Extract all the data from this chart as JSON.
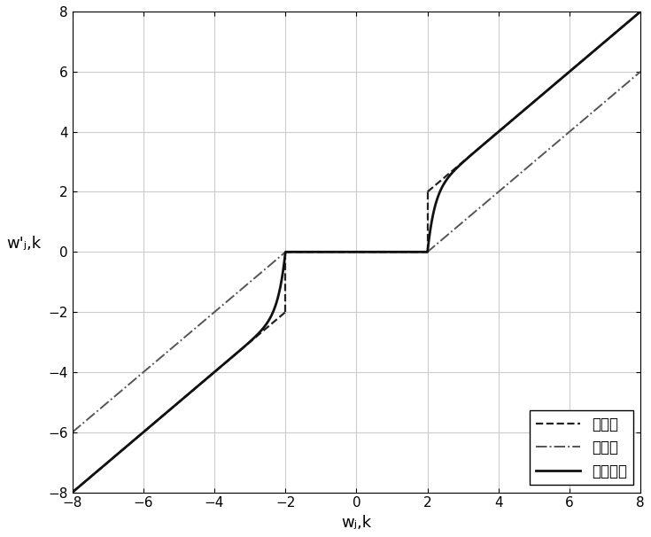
{
  "xlim": [
    -8,
    8
  ],
  "ylim": [
    -8,
    8
  ],
  "xticks": [
    -8,
    -6,
    -4,
    -2,
    0,
    2,
    4,
    6,
    8
  ],
  "yticks": [
    -8,
    -6,
    -4,
    -2,
    0,
    2,
    4,
    6,
    8
  ],
  "xlabel": "wⱼ,k",
  "ylabel": "w'ⱼ,k",
  "threshold": 2,
  "legend_labels": [
    "硬阈値",
    "软阈値",
    "改进阈値"
  ],
  "hard_color": "#222222",
  "soft_color": "#555555",
  "improved_color": "#111111",
  "hard_lw": 1.6,
  "soft_lw": 1.4,
  "improved_lw": 2.0,
  "grid_color": "#cccccc",
  "background_color": "#ffffff",
  "font_size": 13,
  "legend_fontsize": 12,
  "figsize": [
    7.35,
    6.06
  ],
  "dpi": 100
}
